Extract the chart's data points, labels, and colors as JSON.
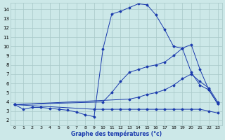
{
  "xlabel": "Graphe des températures (°c)",
  "bg_color": "#cce8e8",
  "line_color": "#1a3aad",
  "grid_color": "#a8c8c8",
  "xlim": [
    -0.5,
    23.5
  ],
  "ylim": [
    1.5,
    14.7
  ],
  "yticks": [
    2,
    3,
    4,
    5,
    6,
    7,
    8,
    9,
    10,
    11,
    12,
    13,
    14
  ],
  "xticks": [
    0,
    1,
    2,
    3,
    4,
    5,
    6,
    7,
    8,
    9,
    10,
    11,
    12,
    13,
    14,
    15,
    16,
    17,
    18,
    19,
    20,
    21,
    22,
    23
  ],
  "curves": [
    {
      "x": [
        0,
        1,
        2,
        3,
        4,
        5,
        6,
        7,
        8,
        9,
        10,
        11,
        12,
        13,
        14,
        15,
        16,
        17,
        18,
        19,
        20,
        21,
        22,
        23
      ],
      "y": [
        3.7,
        3.2,
        3.4,
        3.4,
        3.3,
        3.2,
        3.1,
        2.9,
        2.6,
        2.4,
        9.7,
        13.5,
        13.8,
        14.2,
        14.6,
        14.5,
        13.4,
        11.8,
        10.0,
        9.8,
        10.2,
        7.5,
        5.3,
        3.8
      ]
    },
    {
      "x": [
        0,
        10,
        11,
        12,
        13,
        14,
        15,
        16,
        17,
        18,
        19,
        20,
        21,
        22,
        23
      ],
      "y": [
        3.7,
        4.0,
        5.0,
        6.2,
        7.2,
        7.5,
        7.8,
        8.0,
        8.3,
        9.0,
        9.8,
        7.2,
        5.8,
        5.3,
        3.8
      ]
    },
    {
      "x": [
        0,
        13,
        14,
        15,
        16,
        17,
        18,
        19,
        20,
        21,
        22,
        23
      ],
      "y": [
        3.7,
        4.3,
        4.5,
        4.8,
        5.0,
        5.3,
        5.8,
        6.5,
        7.0,
        6.2,
        5.5,
        4.0
      ]
    },
    {
      "x": [
        0,
        9,
        10,
        11,
        12,
        13,
        14,
        15,
        16,
        17,
        18,
        19,
        20,
        21,
        22,
        23
      ],
      "y": [
        3.7,
        3.2,
        3.2,
        3.2,
        3.2,
        3.2,
        3.2,
        3.2,
        3.2,
        3.2,
        3.2,
        3.2,
        3.2,
        3.2,
        3.0,
        2.8
      ]
    }
  ]
}
